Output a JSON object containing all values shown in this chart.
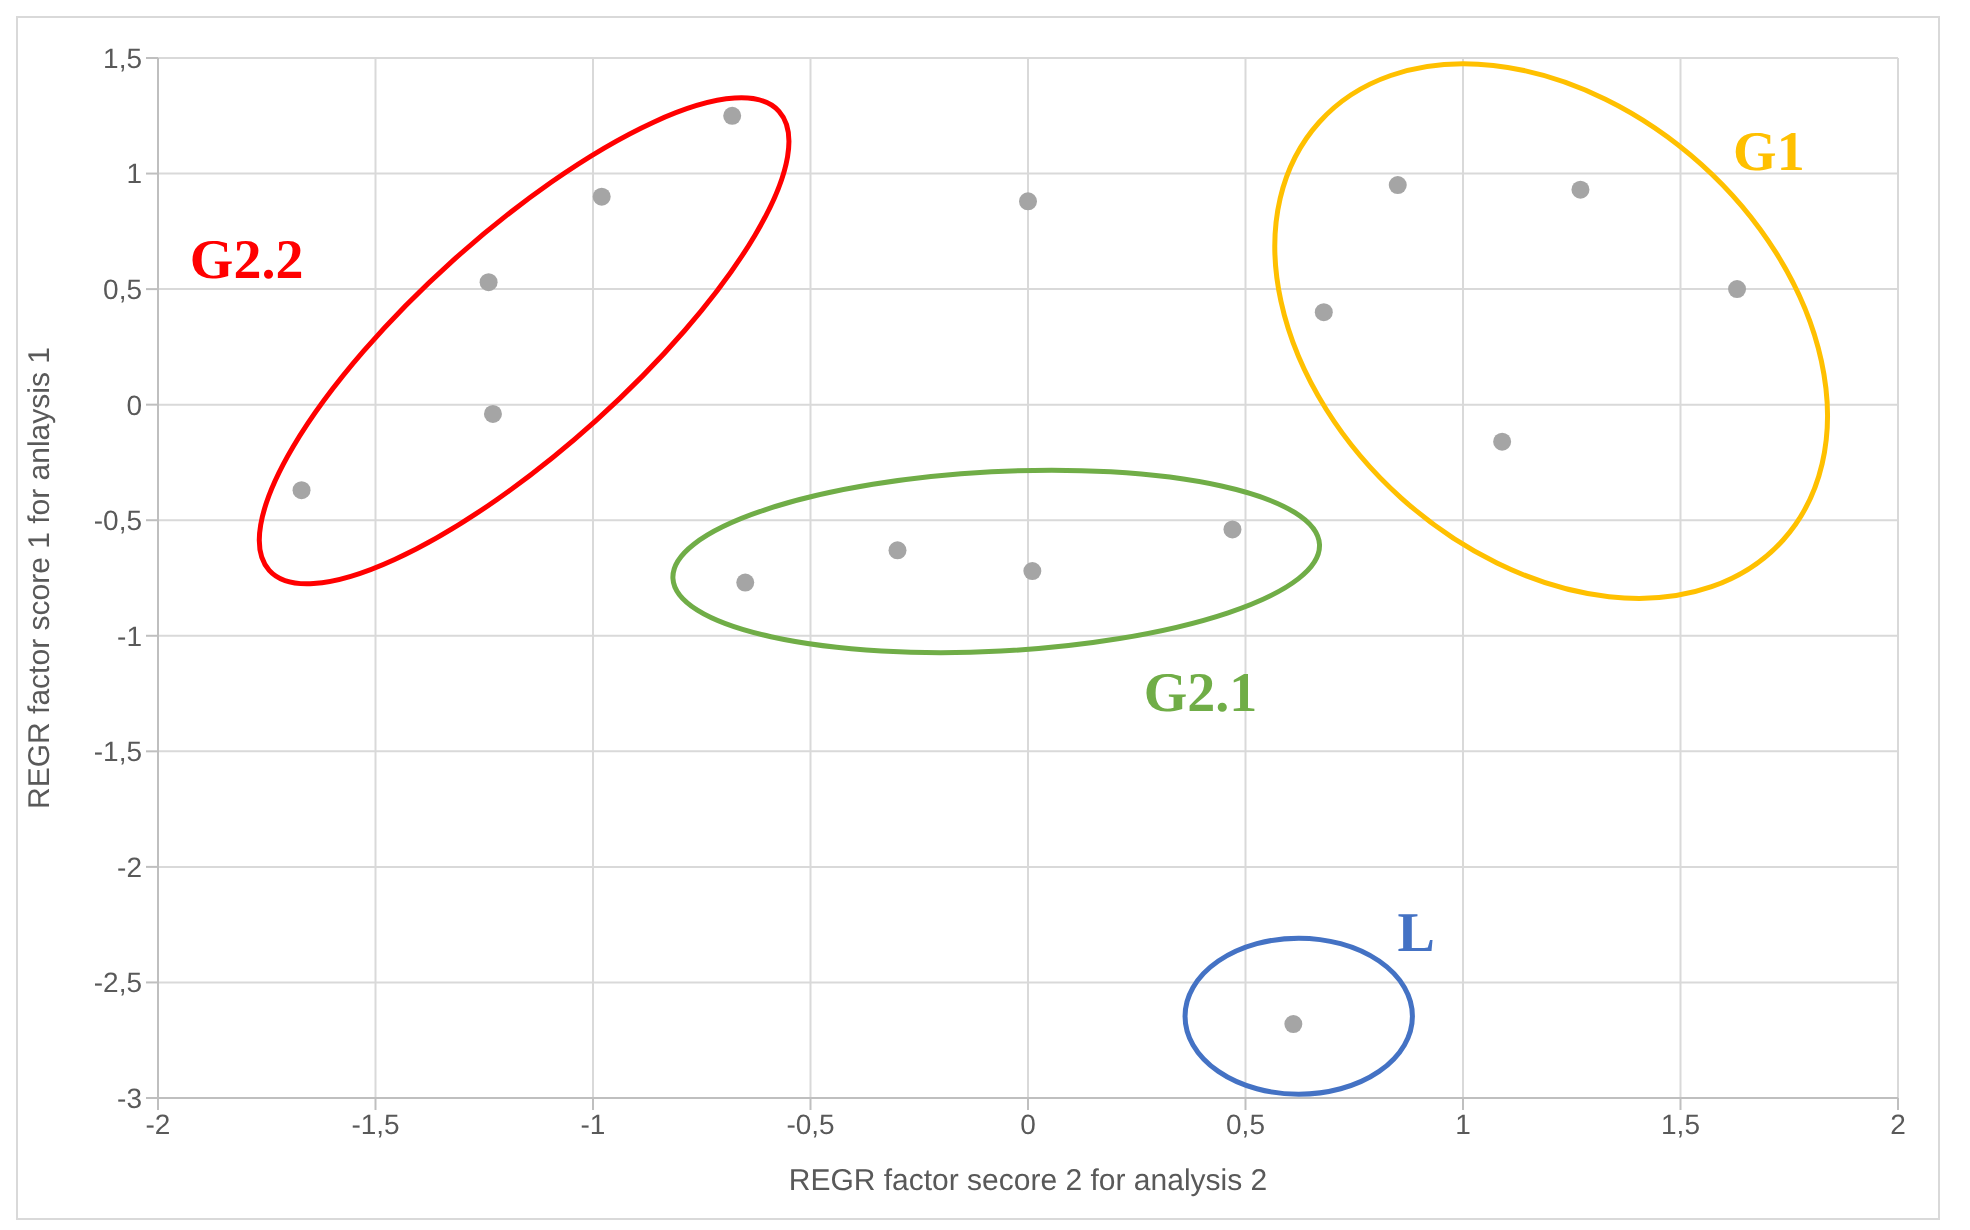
{
  "chart_data": {
    "type": "scatter",
    "xlabel": "REGR factor secore 2 for analysis 2",
    "ylabel": "REGR factor score 1 for anlaysis 1",
    "x": [
      -1.67,
      -1.24,
      -1.23,
      -0.98,
      -0.68,
      -0.65,
      -0.3,
      0,
      0.01,
      0.47,
      0.68,
      0.85,
      1.09,
      1.27,
      1.63,
      0.61
    ],
    "series": [
      {
        "color": "#a5a5a5",
        "values": [
          -0.37,
          0.53,
          -0.04,
          0.9,
          1.25,
          -0.77,
          -0.63,
          0.88,
          -0.72,
          -0.54,
          0.4,
          0.95,
          -0.16,
          0.93,
          0.5,
          -2.68
        ]
      }
    ],
    "xlim": [
      -2,
      2
    ],
    "xticks": [
      {
        "value": -2,
        "label": "-2"
      },
      {
        "value": -1.5,
        "label": "-1,5"
      },
      {
        "value": -1,
        "label": "-1"
      },
      {
        "value": -0.5,
        "label": "-0,5"
      },
      {
        "value": 0,
        "label": "0"
      },
      {
        "value": 0.5,
        "label": "0,5"
      },
      {
        "value": 1,
        "label": "1"
      },
      {
        "value": 1.5,
        "label": "1,5"
      },
      {
        "value": 2,
        "label": "2"
      }
    ],
    "ylim": [
      -3,
      1.5
    ],
    "yticks": [
      {
        "value": -3,
        "label": "-3"
      },
      {
        "value": -2.5,
        "label": "-2,5"
      },
      {
        "value": -2,
        "label": "-2"
      },
      {
        "value": -1.5,
        "label": "-1,5"
      },
      {
        "value": -1,
        "label": "-1"
      },
      {
        "value": -0.5,
        "label": "-0,5"
      },
      {
        "value": 0,
        "label": "0"
      },
      {
        "value": 0.5,
        "label": "0,5"
      },
      {
        "value": 1,
        "label": "1"
      },
      {
        "value": 1.5,
        "label": "1,5"
      }
    ],
    "grid": true,
    "marker": "circle",
    "annotations": [
      "G2.2",
      "G2.1",
      "G1",
      "L"
    ]
  }
}
